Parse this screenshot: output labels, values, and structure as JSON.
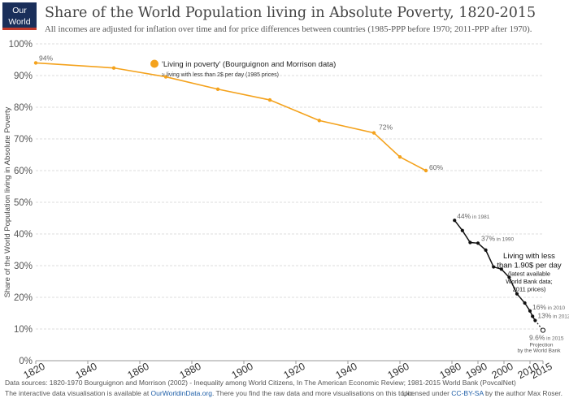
{
  "logo": {
    "line1": "Our World",
    "line2": "in Data"
  },
  "title": "Share of the World Population living in Absolute Poverty, 1820-2015",
  "subtitle": "All incomes are adjusted for inflation over time and for price differences between countries (1985-PPP before 1970; 2011-PPP after 1970).",
  "footer": {
    "sources": "Data sources: 1820-1970 Bourguignon and Morrison (2002) - Inequality among World Citizens, In The American Economic Review; 1981-2015 World Bank (PovcalNet)",
    "interactive_prefix": "The interactive data visualisation is available at ",
    "interactive_link": "OurWorldinData.org",
    "interactive_suffix": ". There you find the raw data and more visualisations on this topic.",
    "license_prefix": "Licensed under ",
    "license_link": "CC-BY-SA",
    "license_suffix": " by the author Max Roser."
  },
  "colors": {
    "orange": "#f4a21c",
    "black": "#111111",
    "grid": "#dddddd",
    "link": "#1f5fa8"
  },
  "chart_data": {
    "type": "line",
    "ylabel": "Share of the World Population living in Absolute Poverty",
    "xlim": [
      1820,
      2015
    ],
    "ylim": [
      0,
      100
    ],
    "x_ticks": [
      "1820",
      "1840",
      "1860",
      "1880",
      "1900",
      "1920",
      "1940",
      "1960",
      "1980",
      "1990",
      "2000",
      "2010",
      "2015"
    ],
    "y_ticks": [
      "0%",
      "10%",
      "20%",
      "30%",
      "40%",
      "50%",
      "60%",
      "70%",
      "80%",
      "90%",
      "100%"
    ],
    "grid": "horizontal",
    "series": [
      {
        "name": "'Living in poverty' (Bourguignon and Morrison data)",
        "note": "≈ living with less than 2$ per day (1985 prices)",
        "color": "#f4a21c",
        "x": [
          1820,
          1850,
          1870,
          1890,
          1910,
          1929,
          1950,
          1960,
          1970
        ],
        "y": [
          94,
          92.4,
          89.6,
          85.7,
          82.3,
          75.8,
          71.9,
          64.3,
          60.0
        ]
      },
      {
        "name": "Living with less than 1.90$ per day",
        "color": "#111111",
        "x": [
          1981,
          1984,
          1987,
          1990,
          1993,
          1996,
          1999,
          2002,
          2005,
          2008,
          2010,
          2011,
          2012
        ],
        "y": [
          44.3,
          41.1,
          37.3,
          37.1,
          34.9,
          29.6,
          28.9,
          26.3,
          21.1,
          18.2,
          15.7,
          14.0,
          12.7
        ]
      }
    ],
    "projection": {
      "x": 2015,
      "y": 9.6
    },
    "data_labels": [
      {
        "text": "94%"
      },
      {
        "text": "72%"
      },
      {
        "text": "60%"
      },
      {
        "text": "44%",
        "small": " in 1981"
      },
      {
        "text": "37%",
        "small": " in 1990"
      },
      {
        "text": "16%",
        "small": " in 2010"
      },
      {
        "text": "13%",
        "small": " in 2012"
      },
      {
        "text": "9.6%",
        "small": " in 2015"
      }
    ],
    "annotations": {
      "legend_label": "'Living in poverty' (Bourguignon and Morrison data)",
      "legend_note": "≈ living with less than 2$ per day (1985 prices)",
      "wb_line1": "Living with less",
      "wb_line2": "than 1.90$ per day",
      "wb_line3": "(latest available",
      "wb_line4": "World Bank data;",
      "wb_line5": "2011 prices)",
      "proj_line1": "Projection",
      "proj_line2": "by the World Bank"
    }
  }
}
